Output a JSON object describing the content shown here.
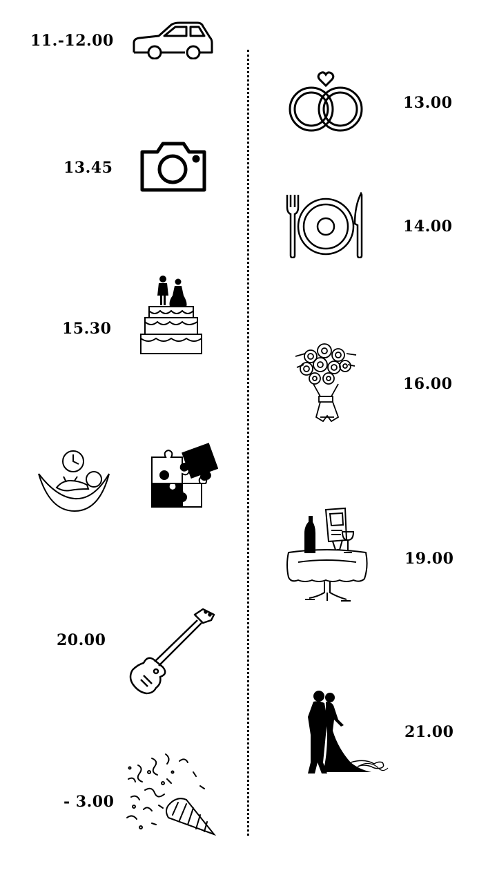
{
  "timeline": {
    "events": [
      {
        "time": "11.-12.00",
        "icon": "car-icon"
      },
      {
        "time": "13.00",
        "icon": "wedding-rings-icon"
      },
      {
        "time": "13.45",
        "icon": "camera-icon"
      },
      {
        "time": "14.00",
        "icon": "dinner-plate-icon"
      },
      {
        "time": "15.30",
        "icon": "wedding-cake-icon"
      },
      {
        "time": "16.00",
        "icon": "bouquet-icon"
      },
      {
        "time": "",
        "icon": "rest-hammock-clock-icon"
      },
      {
        "time": "",
        "icon": "puzzle-icon"
      },
      {
        "time": "19.00",
        "icon": "dinner-table-icon"
      },
      {
        "time": "20.00",
        "icon": "guitar-icon"
      },
      {
        "time": "21.00",
        "icon": "first-dance-couple-icon"
      },
      {
        "time": "- 3.00",
        "icon": "party-popper-icon"
      }
    ]
  }
}
